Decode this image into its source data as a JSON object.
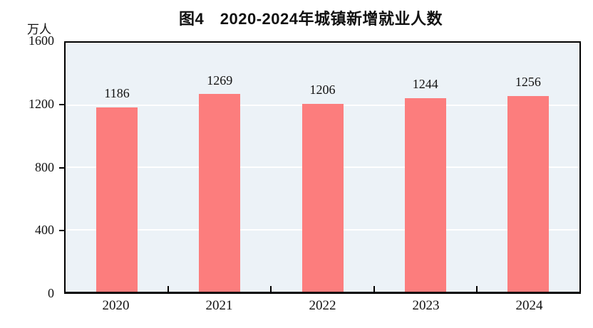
{
  "chart_data": {
    "type": "bar",
    "title": "图4　2020-2024年城镇新增就业人数",
    "categories": [
      "2020",
      "2021",
      "2022",
      "2023",
      "2024"
    ],
    "values": [
      1186,
      1269,
      1206,
      1244,
      1256
    ],
    "xlabel": "",
    "ylabel": "万人",
    "ylim": [
      0,
      1600
    ],
    "yticks": [
      0,
      400,
      800,
      1200,
      1600
    ],
    "grid": true,
    "legend_position": "none",
    "colors": {
      "bar": "#FC7D7D",
      "plot_bg": "#ECF2F7",
      "gridline": "#FFFFFF",
      "axis": "#000000",
      "text": "#111111"
    }
  }
}
